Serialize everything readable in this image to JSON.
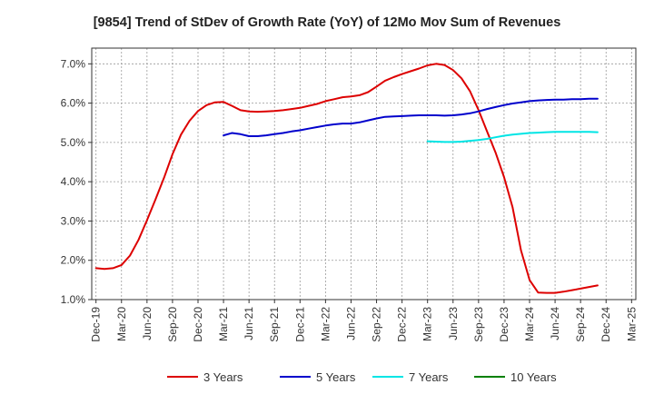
{
  "chart_data": {
    "type": "line",
    "title": "[9854]  Trend of StDev of Growth Rate (YoY) of 12Mo Mov Sum of Revenues",
    "xlabel": "",
    "ylabel": "",
    "ylim": [
      1.0,
      7.4
    ],
    "yticks": [
      1.0,
      2.0,
      3.0,
      4.0,
      5.0,
      6.0,
      7.0
    ],
    "ytick_labels": [
      "1.0%",
      "2.0%",
      "3.0%",
      "4.0%",
      "5.0%",
      "6.0%",
      "7.0%"
    ],
    "x_tick_labels": [
      "Dec-19",
      "Mar-20",
      "Jun-20",
      "Sep-20",
      "Dec-20",
      "Mar-21",
      "Jun-21",
      "Sep-21",
      "Dec-21",
      "Mar-22",
      "Jun-22",
      "Sep-22",
      "Dec-22",
      "Mar-23",
      "Jun-23",
      "Sep-23",
      "Dec-23",
      "Mar-24",
      "Jun-24",
      "Sep-24",
      "Dec-24",
      "Mar-25"
    ],
    "x_months_count": 64,
    "grid": true,
    "legend_position": "bottom",
    "series": [
      {
        "name": "3 Years",
        "color": "#dd0000",
        "start_index": 0,
        "values": [
          1.8,
          1.78,
          1.8,
          1.88,
          2.12,
          2.52,
          3.02,
          3.55,
          4.1,
          4.7,
          5.2,
          5.55,
          5.8,
          5.95,
          6.02,
          6.03,
          5.93,
          5.82,
          5.79,
          5.78,
          5.79,
          5.8,
          5.82,
          5.85,
          5.88,
          5.93,
          5.98,
          6.05,
          6.1,
          6.15,
          6.17,
          6.2,
          6.28,
          6.42,
          6.57,
          6.66,
          6.74,
          6.81,
          6.88,
          6.96,
          7.0,
          6.97,
          6.84,
          6.63,
          6.3,
          5.82,
          5.28,
          4.74,
          4.12,
          3.35,
          2.25,
          1.5,
          1.18,
          1.17,
          1.17,
          1.2,
          1.24,
          1.28,
          1.32,
          1.36
        ]
      },
      {
        "name": "5 Years",
        "color": "#0000cc",
        "start_index": 15,
        "values": [
          5.18,
          5.24,
          5.21,
          5.16,
          5.16,
          5.18,
          5.21,
          5.24,
          5.28,
          5.31,
          5.35,
          5.39,
          5.43,
          5.46,
          5.48,
          5.48,
          5.51,
          5.56,
          5.61,
          5.65,
          5.66,
          5.67,
          5.68,
          5.69,
          5.69,
          5.69,
          5.68,
          5.69,
          5.71,
          5.74,
          5.79,
          5.85,
          5.9,
          5.95,
          5.99,
          6.02,
          6.05,
          6.07,
          6.08,
          6.09,
          6.09,
          6.1,
          6.1,
          6.11,
          6.11
        ]
      },
      {
        "name": "7 Years",
        "color": "#00e5e5",
        "start_index": 39,
        "values": [
          5.03,
          5.02,
          5.01,
          5.01,
          5.02,
          5.04,
          5.06,
          5.09,
          5.13,
          5.17,
          5.2,
          5.22,
          5.24,
          5.25,
          5.26,
          5.27,
          5.27,
          5.27,
          5.27,
          5.27,
          5.26
        ]
      },
      {
        "name": "10 Years",
        "color": "#008000",
        "start_index": 0,
        "values": []
      }
    ]
  }
}
